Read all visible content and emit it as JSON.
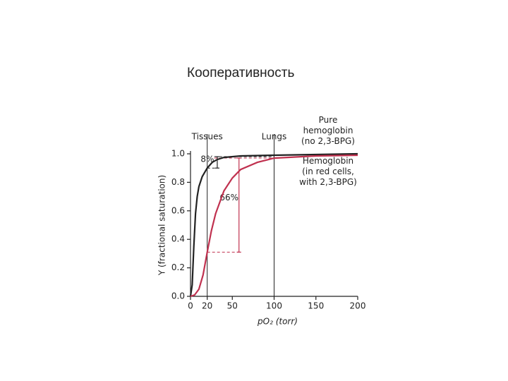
{
  "slide_title": "Кооперативность",
  "chart_data": {
    "type": "line",
    "x_label": "pO₂ (torr)",
    "y_label": "Y (fractional saturation)",
    "xlim": [
      0,
      200
    ],
    "xticks": [
      0,
      20,
      50,
      100,
      150,
      200
    ],
    "ylim": [
      0,
      1
    ],
    "yticks": [
      {
        "value": 0,
        "label": "0.0"
      },
      0.2,
      0.4,
      0.6,
      0.8,
      {
        "value": 1,
        "label": "1.0"
      }
    ],
    "series": [
      {
        "name": "Pure\nhemoglobin\n(no 2,3-BPG)",
        "color": "#222222",
        "x": [
          0,
          2,
          4,
          6,
          8,
          10,
          14,
          20,
          26,
          32,
          40,
          60,
          100,
          150,
          200
        ],
        "values": [
          0,
          0.08,
          0.35,
          0.58,
          0.7,
          0.77,
          0.84,
          0.9,
          0.94,
          0.96,
          0.975,
          0.985,
          0.99,
          0.995,
          1.0
        ]
      },
      {
        "name": "Hemoglobin\n(in red cells,\nwith 2,3-BPG)",
        "color": "#c0314f",
        "x": [
          0,
          5,
          10,
          15,
          20,
          25,
          30,
          40,
          50,
          60,
          80,
          100,
          150,
          200
        ],
        "values": [
          0,
          0.01,
          0.05,
          0.15,
          0.31,
          0.46,
          0.58,
          0.74,
          0.83,
          0.89,
          0.94,
          0.97,
          0.985,
          0.99
        ]
      }
    ],
    "markers": [
      {
        "label": "Tissues",
        "x": 20
      },
      {
        "label": "Lungs",
        "x": 100
      }
    ],
    "annotations": [
      {
        "text": "8%",
        "x": 32,
        "from": 0.98,
        "to": 0.9,
        "color": "#222222"
      },
      {
        "text": "66%",
        "x": 58,
        "from": 0.97,
        "to": 0.31,
        "color": "#c0314f"
      }
    ]
  }
}
